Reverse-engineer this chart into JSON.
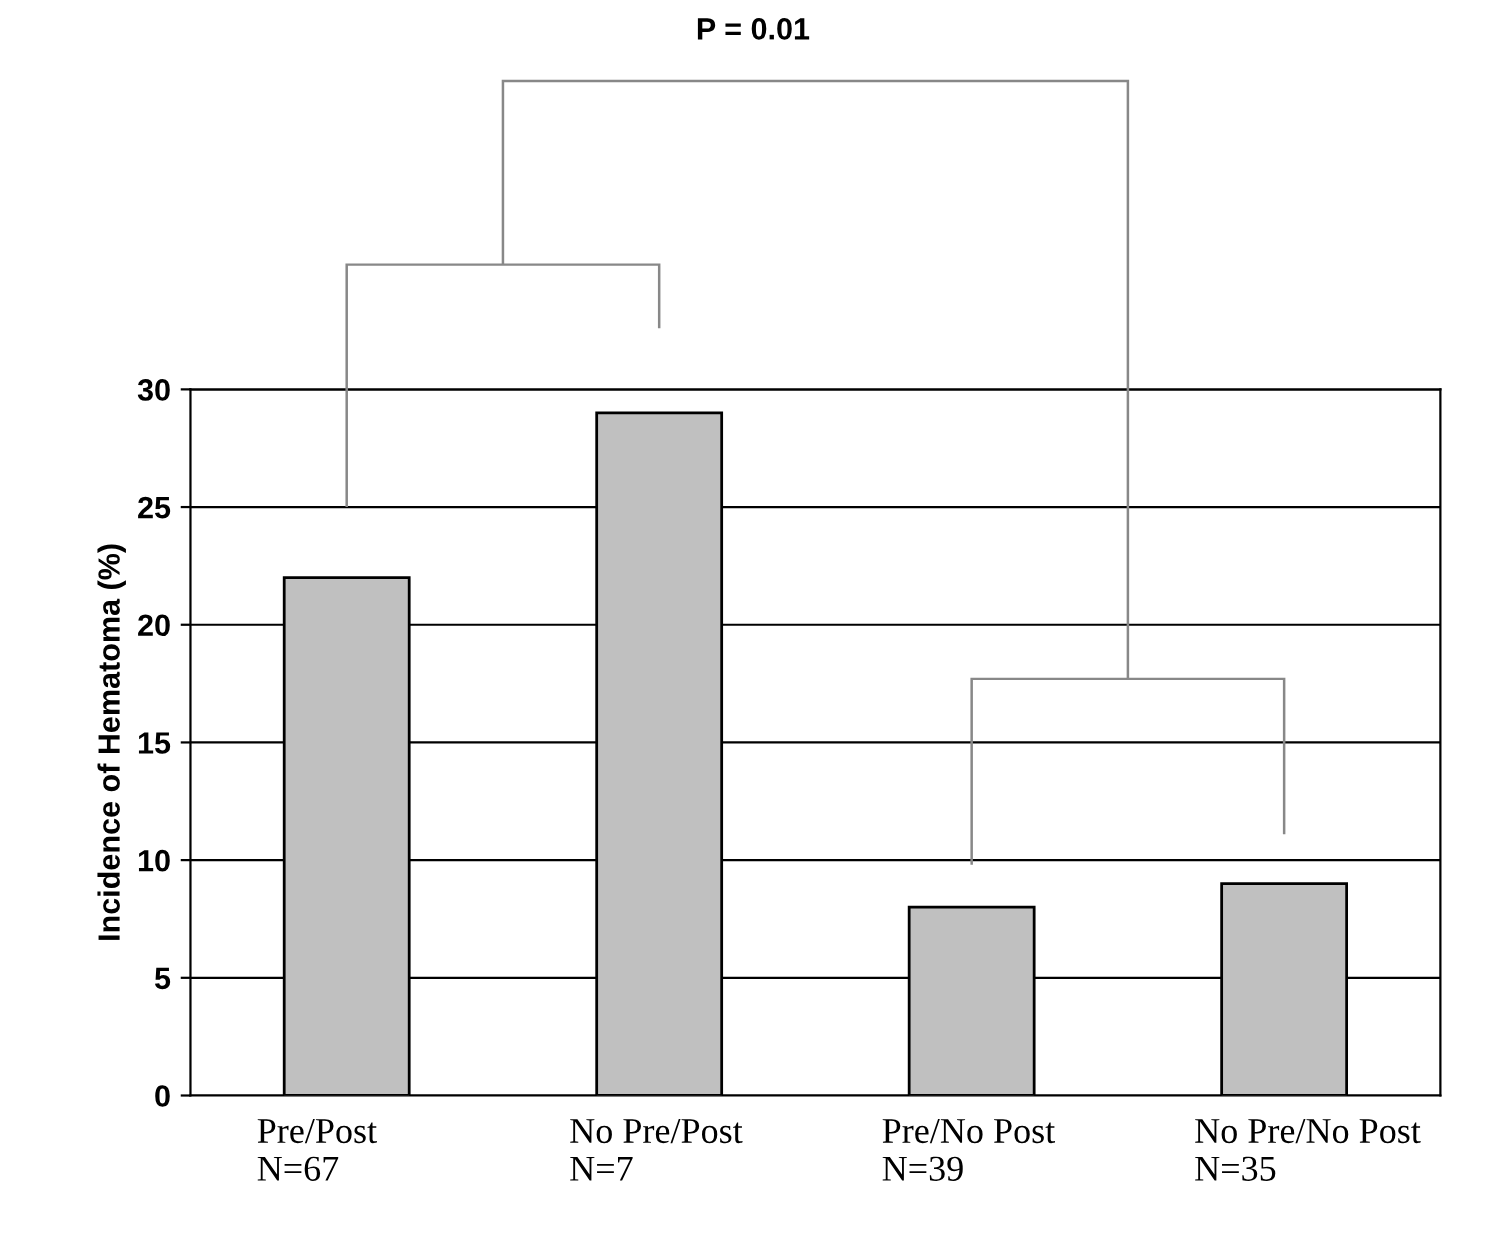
{
  "chart_data": {
    "type": "bar",
    "ylabel": "Incidence of Hematoma (%)",
    "categories": [
      "Pre/Post\nN=67",
      "No Pre/Post\nN=7",
      "Pre/No Post\nN=39",
      "No Pre/No Post\nN=35"
    ],
    "values": [
      22,
      29,
      8,
      9
    ],
    "color": "#c0c0c0",
    "ylim": [
      0,
      30
    ],
    "yticks": [
      0,
      5,
      10,
      15,
      20,
      25,
      30
    ],
    "grid": "y",
    "annotations": [
      "P = 0.01"
    ]
  }
}
